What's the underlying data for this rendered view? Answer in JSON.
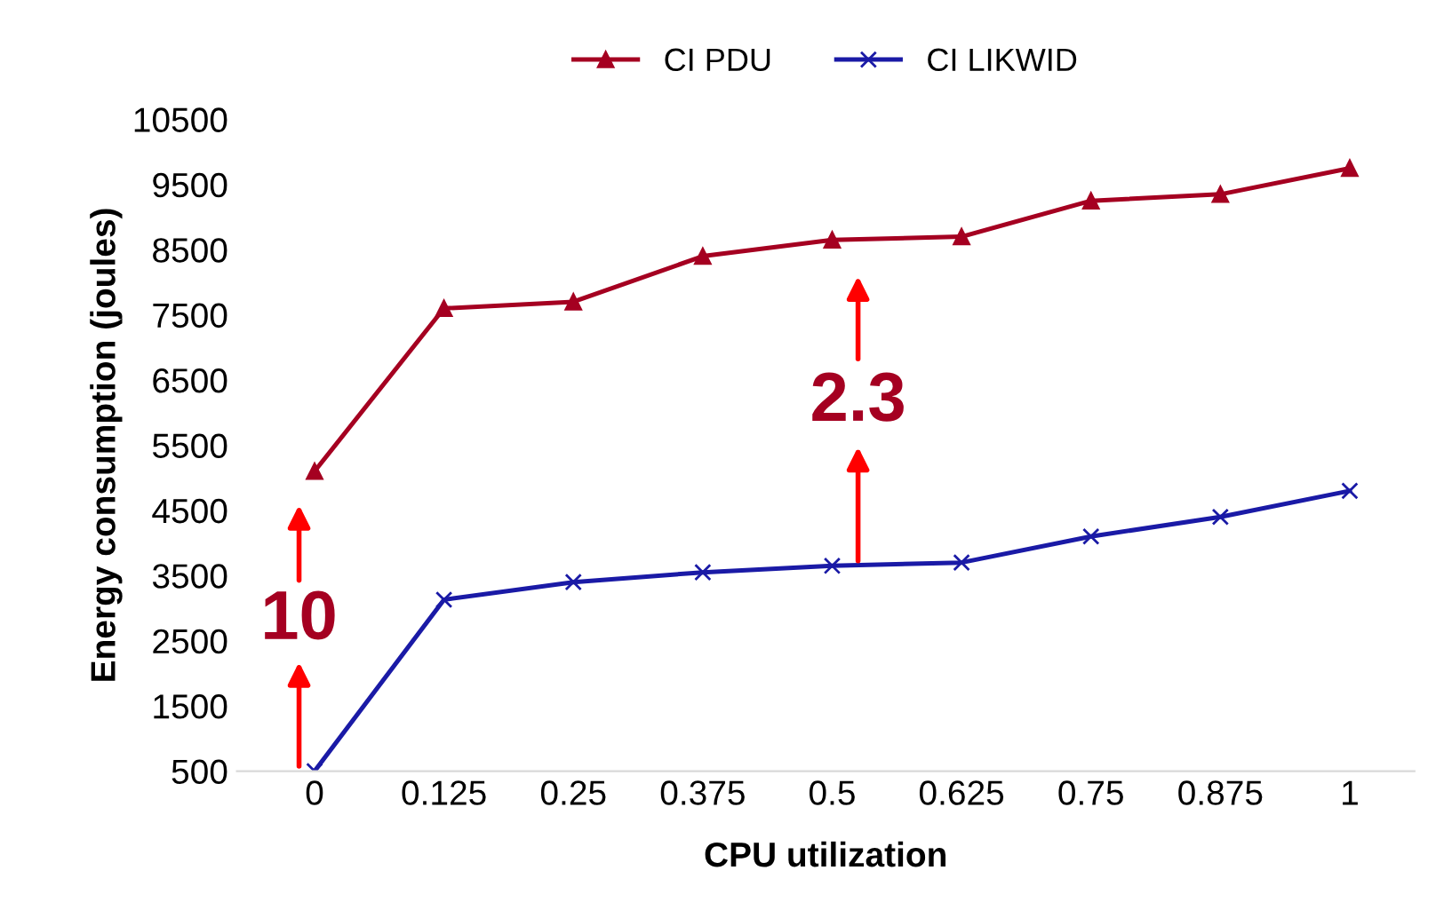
{
  "chart_data": {
    "type": "line",
    "xlabel": "CPU utilization",
    "ylabel": "Energy consumption (joules)",
    "categories": [
      "0",
      "0.125",
      "0.25",
      "0.375",
      "0.5",
      "0.625",
      "0.75",
      "0.875",
      "1"
    ],
    "series": [
      {
        "name": "CI PDU",
        "color": "#a50021",
        "marker": "triangle",
        "values": [
          5100,
          7600,
          7700,
          8400,
          8650,
          8700,
          9250,
          9350,
          9750
        ]
      },
      {
        "name": "CI LIKWID",
        "color": "#1a1aa6",
        "marker": "cross",
        "values": [
          500,
          3130,
          3400,
          3550,
          3650,
          3700,
          4100,
          4400,
          4800
        ]
      }
    ],
    "ylim": [
      500,
      10500
    ],
    "yticks": [
      500,
      1500,
      2500,
      3500,
      4500,
      5500,
      6500,
      7500,
      8500,
      9500,
      10500
    ],
    "annotations": [
      {
        "text": "10",
        "x": "0",
        "y": 5100
      },
      {
        "text": "2.3",
        "x": "0.5",
        "y": 8650
      }
    ],
    "legend": "top",
    "grid": false,
    "line_style": "solid"
  }
}
